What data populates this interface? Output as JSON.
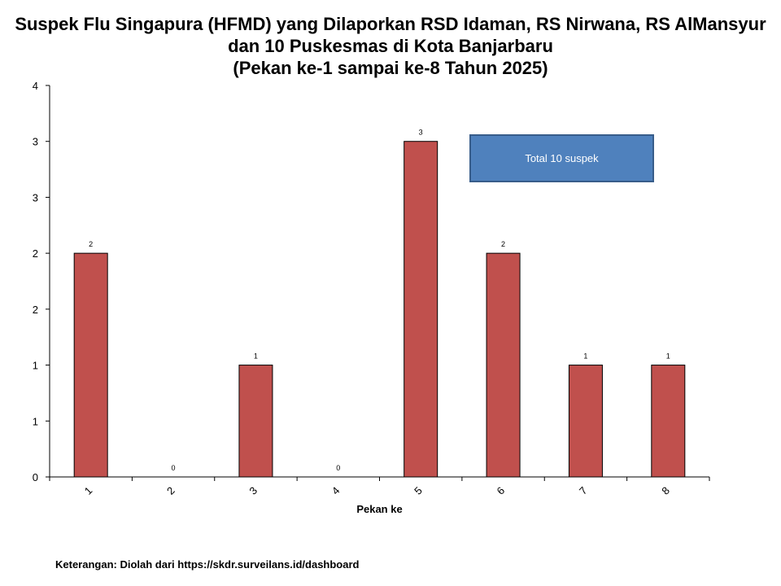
{
  "chart_data": {
    "type": "bar",
    "title_lines": [
      "Suspek Flu Singapura (HFMD) yang Dilaporkan RSD Idaman, RS Nirwana, RS AlMansyur",
      "dan 10 Puskesmas di Kota Banjarbaru",
      "(Pekan ke-1 sampai ke-8 Tahun 2025)"
    ],
    "categories": [
      "1",
      "2",
      "3",
      "4",
      "5",
      "6",
      "7",
      "8"
    ],
    "values": [
      2,
      0,
      1,
      0,
      3,
      2,
      1,
      1
    ],
    "data_labels": [
      "2",
      "0",
      "1",
      "0",
      "3",
      "2",
      "1",
      "1"
    ],
    "xlabel": "Pekan ke",
    "ylabel": "",
    "ylim": [
      0,
      3.5
    ],
    "y_ticks": [
      0,
      0.5,
      1,
      1.5,
      2,
      2.5,
      3,
      3.5
    ],
    "y_tick_labels": [
      "0",
      "1",
      "1",
      "2",
      "2",
      "3",
      "3",
      "4"
    ],
    "bar_color": "#c0504d",
    "grid": false,
    "annotation": "Total 10 suspek",
    "annotation_color": "#4f81bd"
  },
  "footer": {
    "source": "Keterangan: Diolah dari https://skdr.surveilans.id/dashboard"
  }
}
